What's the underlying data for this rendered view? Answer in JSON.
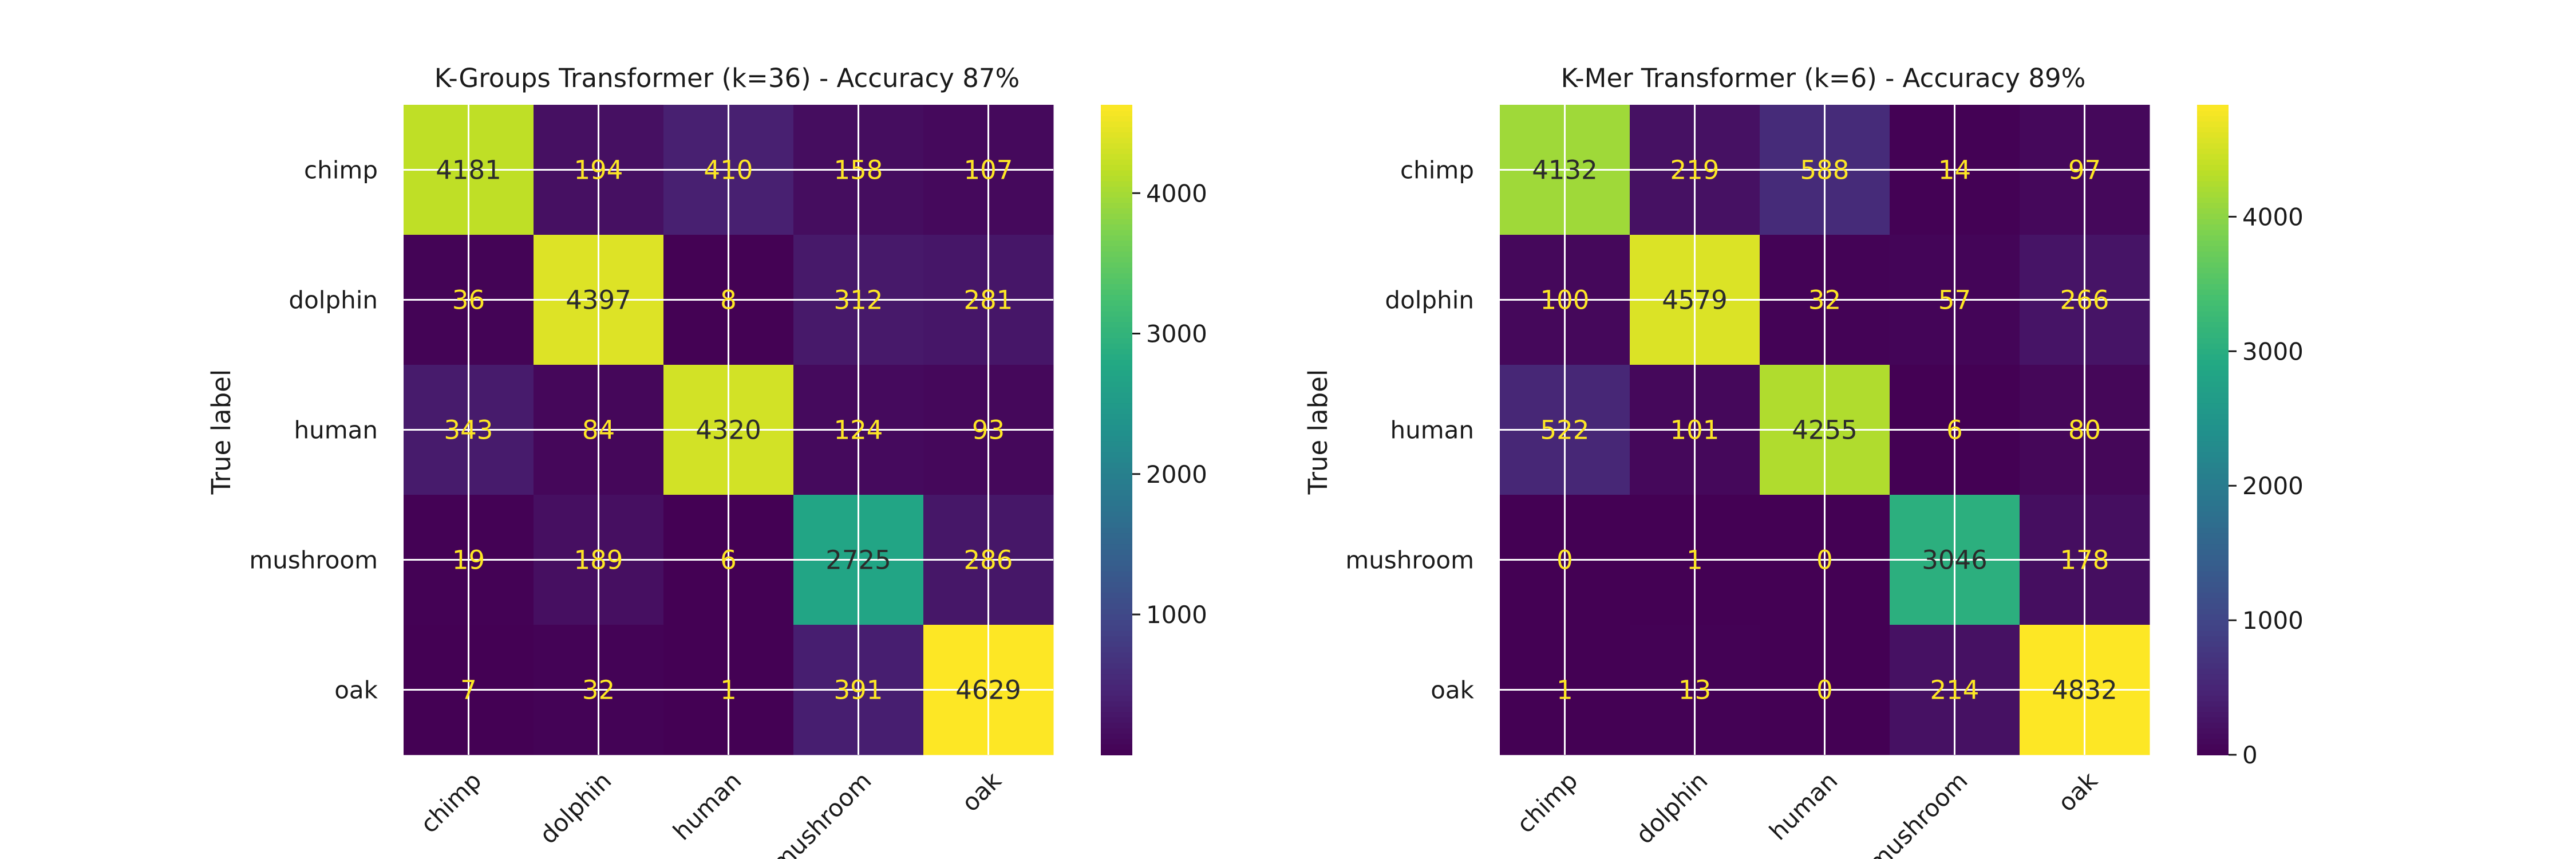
{
  "chart_data": [
    {
      "type": "heatmap",
      "title": "K-Groups Transformer (k=36) - Accuracy 87%",
      "ylabel": "True label",
      "xlabel": "",
      "rows": [
        "chimp",
        "dolphin",
        "human",
        "mushroom",
        "oak"
      ],
      "columns": [
        "chimp",
        "dolphin",
        "human",
        "mushroom",
        "oak"
      ],
      "values": [
        [
          4181,
          194,
          410,
          158,
          107
        ],
        [
          36,
          4397,
          8,
          312,
          281
        ],
        [
          343,
          84,
          4320,
          124,
          93
        ],
        [
          19,
          189,
          6,
          2725,
          286
        ],
        [
          7,
          32,
          1,
          391,
          4629
        ]
      ],
      "colorbar_ticks": [
        1000,
        2000,
        3000,
        4000
      ],
      "colorbar_range": [
        1,
        4629
      ],
      "colormap": "viridis",
      "grid": true
    },
    {
      "type": "heatmap",
      "title": "K-Mer Transformer (k=6) - Accuracy 89%",
      "ylabel": "True label",
      "xlabel": "",
      "rows": [
        "chimp",
        "dolphin",
        "human",
        "mushroom",
        "oak"
      ],
      "columns": [
        "chimp",
        "dolphin",
        "human",
        "mushroom",
        "oak"
      ],
      "values": [
        [
          4132,
          219,
          588,
          14,
          97
        ],
        [
          100,
          4579,
          32,
          57,
          266
        ],
        [
          522,
          101,
          4255,
          6,
          80
        ],
        [
          0,
          1,
          0,
          3046,
          178
        ],
        [
          1,
          13,
          0,
          214,
          4832
        ]
      ],
      "colorbar_ticks": [
        0,
        1000,
        2000,
        3000,
        4000
      ],
      "colorbar_range": [
        0,
        4832
      ],
      "colormap": "viridis",
      "grid": true
    }
  ],
  "colors": {
    "text_light": "#FDE725",
    "text_dark": "#2B2B2B",
    "gridline": "#FFFFFF"
  }
}
